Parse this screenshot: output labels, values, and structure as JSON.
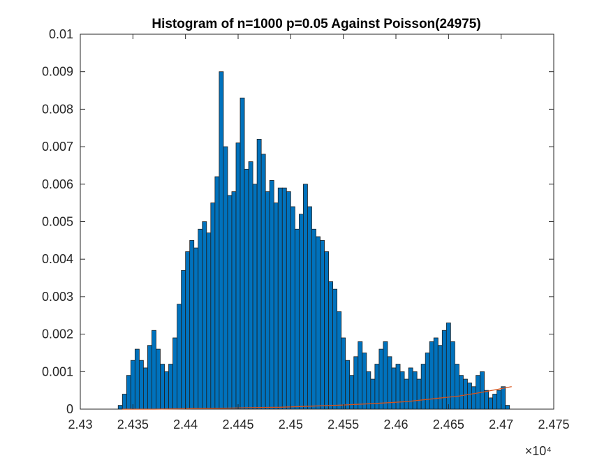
{
  "chart_data": {
    "type": "bar",
    "title": "Histogram of n=1000 p=0.05 Against Poisson(24975)",
    "xlabel": "",
    "ylabel": "",
    "x_exponent_label": "×10⁴",
    "xlim": [
      2.43,
      2.475
    ],
    "ylim": [
      0,
      0.01
    ],
    "xticks": [
      "2.43",
      "2.435",
      "2.44",
      "2.445",
      "2.45",
      "2.455",
      "2.46",
      "2.465",
      "2.47",
      "2.475"
    ],
    "yticks": [
      "0",
      "0.001",
      "0.002",
      "0.003",
      "0.004",
      "0.005",
      "0.006",
      "0.007",
      "0.008",
      "0.009",
      "0.01"
    ],
    "grid": false,
    "legend": "none",
    "series": [
      {
        "kind": "histogram",
        "color": "#0072BD",
        "edge_color": "#1f1f1f",
        "bin_centers": [
          2.4338,
          2.4342,
          2.4346,
          2.435,
          2.4354,
          2.4358,
          2.4362,
          2.4366,
          2.437,
          2.4374,
          2.4378,
          2.4382,
          2.4386,
          2.439,
          2.4394,
          2.4398,
          2.4402,
          2.4406,
          2.441,
          2.4414,
          2.4418,
          2.4422,
          2.4426,
          2.443,
          2.4434,
          2.4438,
          2.4442,
          2.4446,
          2.445,
          2.4454,
          2.4458,
          2.4462,
          2.4466,
          2.447,
          2.4474,
          2.4478,
          2.4482,
          2.4486,
          2.449,
          2.4494,
          2.4498,
          2.4502,
          2.4506,
          2.451,
          2.4514,
          2.4518,
          2.4522,
          2.4526,
          2.453,
          2.4534,
          2.4538,
          2.4542,
          2.4546,
          2.455,
          2.4554,
          2.4558,
          2.4562,
          2.4566,
          2.457,
          2.4574,
          2.4578,
          2.4582,
          2.4586,
          2.459,
          2.4594,
          2.4598,
          2.4602,
          2.4606,
          2.461,
          2.4614,
          2.4618,
          2.4622,
          2.4626,
          2.463,
          2.4634,
          2.4638,
          2.4642,
          2.4646,
          2.465,
          2.4654,
          2.4658,
          2.4662,
          2.4666,
          2.467,
          2.4674,
          2.4678,
          2.4682,
          2.4686,
          2.469,
          2.4694,
          2.4698,
          2.4702,
          2.4706
        ],
        "values": [
          0.0001,
          0.0004,
          0.0009,
          0.0013,
          0.0016,
          0.0013,
          0.0011,
          0.0017,
          0.0021,
          0.0016,
          0.0012,
          0.001,
          0.0012,
          0.0019,
          0.0028,
          0.0037,
          0.0042,
          0.0045,
          0.0043,
          0.0048,
          0.005,
          0.0047,
          0.0055,
          0.0062,
          0.009,
          0.007,
          0.0057,
          0.0058,
          0.0071,
          0.0083,
          0.0064,
          0.0066,
          0.006,
          0.0072,
          0.0068,
          0.0058,
          0.0061,
          0.0055,
          0.0059,
          0.0059,
          0.0058,
          0.0054,
          0.0048,
          0.0052,
          0.006,
          0.0054,
          0.0048,
          0.0046,
          0.0045,
          0.0042,
          0.0034,
          0.0032,
          0.0026,
          0.0019,
          0.0013,
          0.0009,
          0.0014,
          0.0018,
          0.0015,
          0.001,
          0.0008,
          0.0012,
          0.0016,
          0.0018,
          0.0014,
          0.0011,
          0.0012,
          0.001,
          0.0008,
          0.0011,
          0.001,
          0.0008,
          0.0012,
          0.0015,
          0.0018,
          0.0019,
          0.0017,
          0.0021,
          0.0023,
          0.0018,
          0.0012,
          0.0009,
          0.0008,
          0.0007,
          0.0006,
          0.0009,
          0.001,
          0.0005,
          0.0003,
          0.0004,
          0.0005,
          0.0006,
          0.0001
        ]
      },
      {
        "kind": "line",
        "color": "#D95319",
        "x": [
          2.434,
          2.437,
          2.44,
          2.443,
          2.446,
          2.449,
          2.452,
          2.455,
          2.458,
          2.461,
          2.464,
          2.466,
          2.468,
          2.4695,
          2.471
        ],
        "values": [
          0,
          0,
          1e-05,
          2e-05,
          4e-05,
          5e-05,
          8e-05,
          0.00011,
          0.00015,
          0.0002,
          0.00029,
          0.00035,
          0.00044,
          0.00052,
          0.0006
        ]
      }
    ]
  }
}
